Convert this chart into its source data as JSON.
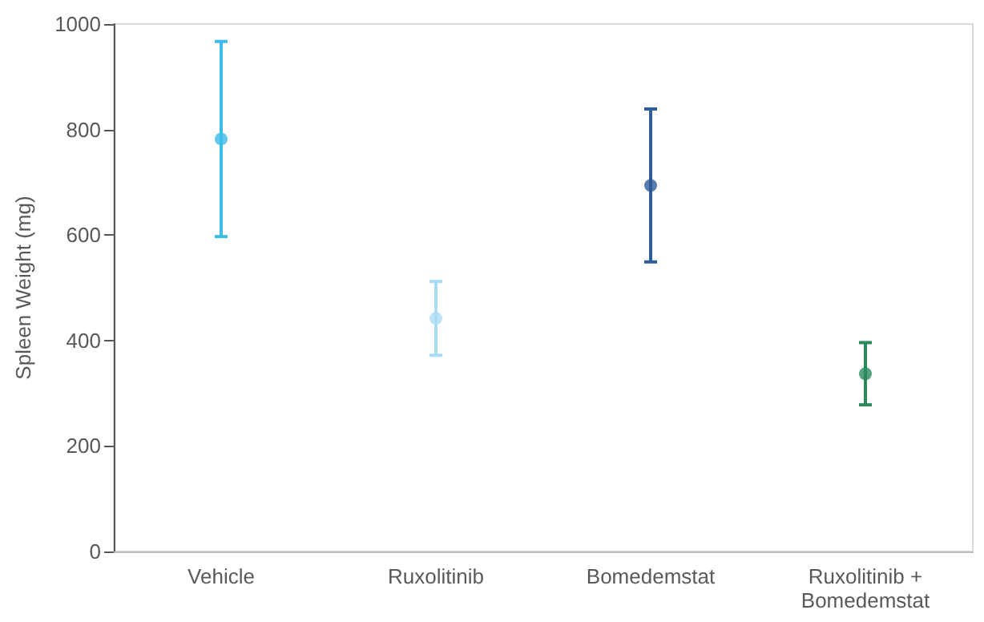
{
  "chart_data": {
    "type": "scatter",
    "ylabel": "Spleen Weight (mg)",
    "categories": [
      "Vehicle",
      "Ruxolitinib",
      "Bomedemstat",
      "Ruxolitinib +\nBomedemstat"
    ],
    "values": [
      782,
      442,
      694,
      337
    ],
    "errors": [
      185,
      70,
      145,
      59
    ],
    "colors": [
      "#3dbde8",
      "#a9dcf3",
      "#2e5d9a",
      "#2a8a5e"
    ],
    "ylim": [
      0,
      1000
    ],
    "yticks": [
      0,
      200,
      400,
      600,
      800,
      1000
    ],
    "marker": "circle"
  }
}
